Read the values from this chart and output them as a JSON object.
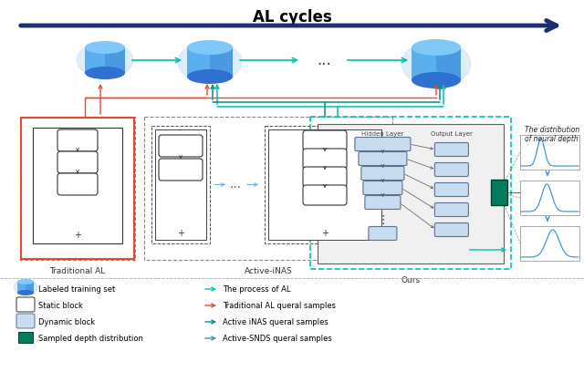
{
  "title": "AL cycles",
  "title_fontsize": 12,
  "title_fontweight": "bold",
  "bg_color": "#ffffff",
  "arrow_color_main": "#1a2f6e",
  "teal_color": "#00c0b0",
  "red_color": "#e84830",
  "blue_color": "#4090d0",
  "dark_teal": "#00908a",
  "db_top_color": "#5aafee",
  "db_body_color": "#3070d0",
  "db_glow": "#c0dff8",
  "static_block_fill": "#ffffff",
  "static_block_edge": "#333333",
  "dynamic_block_fill": "#c8dcf0",
  "dynamic_block_edge": "#607090",
  "sampled_depth_color": "#007d5c",
  "sampled_depth_edge": "#004030",
  "dashed_box_color": "#888888",
  "trad_red_border": "#e84830",
  "nn_box_fill": "#f0f0f0",
  "nn_box_edge": "#606060",
  "dist_box_fill": "#ffffff",
  "dist_box_edge": "#aaaaaa",
  "dist_curve_color": "#3090d0",
  "dist_arrow_color": "#3090d0",
  "legend_bg": "#ffffff",
  "hidden_layer_label": "Hidden Layer",
  "output_layer_label": "Output Layer",
  "dist_label": "The distribution\nof neural depth",
  "trad_label": "Traditional AL",
  "inas_label": "Active-iNAS",
  "ours_label": "Ours",
  "leg1": "Labeled training set",
  "leg2": "Static block",
  "leg3": "Dynamic block",
  "leg4": "Sampled depth distribution",
  "leg5": "The process of AL",
  "leg6": "Traditional AL queral samples",
  "leg7": "Active iNAS queral samples",
  "leg8": "Active-SNDS queral samples"
}
